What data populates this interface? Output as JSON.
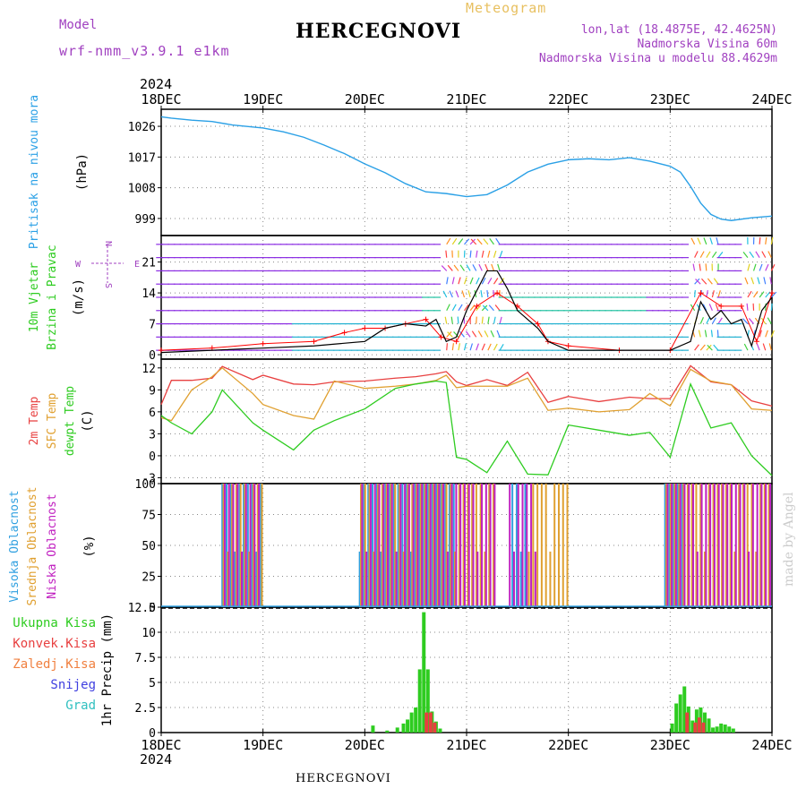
{
  "header": {
    "title": "HERCEGNOVI",
    "meteogram_label": "Meteogram",
    "model_label": "Model",
    "model_name": "wrf-nmm_v3.9.1 e1km",
    "lonlat": "lon,lat (18.4875E, 42.4625N)",
    "elevation": "Nadmorska Visina 60m",
    "model_elevation": "Nadmorska Visina u modelu 88.4629m"
  },
  "footer": {
    "station": "HERCEGNOVI",
    "watermark": "made by Angel"
  },
  "chart_data": [
    {
      "type": "line",
      "panel": "pressure",
      "xlabels": [
        "18DEC",
        "19DEC",
        "20DEC",
        "21DEC",
        "22DEC",
        "23DEC",
        "24DEC"
      ],
      "year": "2024",
      "ylabels": [
        "Pritisak na nivou mora",
        "(hPa)"
      ],
      "yticks": [
        "999",
        "1008",
        "1017",
        "1026"
      ],
      "ylim": [
        994,
        1031
      ],
      "color": "#2aa0e6",
      "series": [
        {
          "x": [
            0,
            0.1,
            0.3,
            0.5,
            0.7,
            1.0,
            1.2,
            1.4,
            1.6,
            1.8,
            2.0,
            2.2,
            2.4,
            2.6,
            2.8,
            3.0,
            3.2,
            3.4,
            3.6,
            3.8,
            4.0,
            4.2,
            4.4,
            4.6,
            4.8,
            5.0,
            5.1,
            5.2,
            5.3,
            5.4,
            5.5,
            5.6,
            5.8,
            6.0
          ],
          "values": [
            1028.8,
            1028.4,
            1027.8,
            1027.4,
            1026.4,
            1025.5,
            1024.4,
            1022.8,
            1020.5,
            1018.0,
            1015.0,
            1012.4,
            1009.2,
            1006.8,
            1006.3,
            1005.4,
            1006.0,
            1008.8,
            1012.6,
            1014.9,
            1016.2,
            1016.5,
            1016.2,
            1016.8,
            1015.8,
            1014.3,
            1012.6,
            1008.4,
            1003.5,
            1000.2,
            998.8,
            998.4,
            999.2,
            999.7
          ]
        }
      ]
    },
    {
      "type": "line",
      "panel": "wind",
      "xlabels": [
        "18DEC",
        "19DEC",
        "20DEC",
        "21DEC",
        "22DEC",
        "23DEC",
        "24DEC"
      ],
      "ylabels": [
        "10m Vjetar",
        "Brzina i Pravac",
        "(m/s)"
      ],
      "yticks": [
        "0",
        "7",
        "14",
        "21"
      ],
      "ylim": [
        -1,
        27
      ],
      "compass": {
        "north": "N",
        "east": "E",
        "west": "W",
        "south": "S"
      },
      "series": [
        {
          "name": "speed",
          "color": "#000000",
          "x": [
            0,
            0.5,
            1.0,
            1.5,
            2.0,
            2.2,
            2.4,
            2.6,
            2.7,
            2.8,
            2.9,
            3.0,
            3.2,
            3.3,
            3.4,
            3.5,
            3.6,
            3.7,
            3.8,
            4.0,
            4.5,
            5.0,
            5.2,
            5.3,
            5.4,
            5.5,
            5.6,
            5.7,
            5.8,
            5.9,
            6.0
          ],
          "values": [
            0.5,
            1,
            1.5,
            2,
            3,
            6,
            7,
            6.5,
            8,
            3,
            4,
            10,
            19,
            19,
            15,
            10,
            8,
            6,
            3,
            1,
            1,
            1,
            3,
            12,
            8,
            10,
            7,
            8,
            2,
            10,
            13
          ]
        },
        {
          "name": "gust",
          "color": "#ff0000",
          "x": [
            0,
            0.5,
            1.0,
            1.5,
            1.8,
            2.0,
            2.2,
            2.4,
            2.6,
            2.75,
            2.9,
            3.1,
            3.3,
            3.5,
            3.7,
            3.8,
            4.0,
            4.5,
            5.0,
            5.3,
            5.5,
            5.7,
            5.85,
            6.0
          ],
          "values": [
            1,
            1.5,
            2.5,
            3,
            5,
            6,
            6,
            7,
            8,
            4,
            3,
            11,
            14,
            11,
            7,
            3,
            2,
            1,
            1,
            14,
            11,
            11,
            3,
            14
          ]
        }
      ]
    },
    {
      "type": "line",
      "panel": "temperature",
      "xlabels": [
        "18DEC",
        "19DEC",
        "20DEC",
        "21DEC",
        "22DEC",
        "23DEC",
        "24DEC"
      ],
      "ylabels": [
        "2m Temp",
        "SFC Temp",
        "dewpt Temp",
        "(C)"
      ],
      "yticks": [
        "-3",
        "0",
        "3",
        "6",
        "9",
        "12"
      ],
      "ylim": [
        -3.8,
        13.2
      ],
      "series": [
        {
          "name": "2m Temp",
          "color": "#e84040",
          "x": [
            0,
            0.1,
            0.3,
            0.5,
            0.6,
            0.9,
            1.0,
            1.3,
            1.5,
            1.7,
            2.0,
            2.3,
            2.5,
            2.7,
            2.8,
            2.9,
            3.0,
            3.2,
            3.4,
            3.6,
            3.8,
            4.0,
            4.3,
            4.6,
            4.8,
            5.0,
            5.2,
            5.4,
            5.6,
            5.8,
            6.0
          ],
          "values": [
            7,
            10.3,
            10.3,
            10.6,
            12.2,
            10.4,
            11,
            9.8,
            9.7,
            10.1,
            10.2,
            10.6,
            10.8,
            11.2,
            11.5,
            10.1,
            9.6,
            10.4,
            9.6,
            11.4,
            7.3,
            8.1,
            7.4,
            8,
            7.8,
            7.8,
            12.3,
            10.1,
            9.7,
            7.5,
            6.8
          ]
        },
        {
          "name": "SFC Temp",
          "color": "#e0a030",
          "x": [
            0,
            0.1,
            0.3,
            0.5,
            0.6,
            0.9,
            1.0,
            1.3,
            1.5,
            1.7,
            2.0,
            2.3,
            2.5,
            2.7,
            2.8,
            2.9,
            3.0,
            3.2,
            3.4,
            3.6,
            3.8,
            4.0,
            4.3,
            4.6,
            4.8,
            5.0,
            5.2,
            5.4,
            5.6,
            5.8,
            6.0
          ],
          "values": [
            5.2,
            4.8,
            9,
            10.8,
            12,
            8.5,
            7,
            5.5,
            5,
            10.2,
            9.2,
            9.5,
            9.8,
            10.3,
            11,
            9.3,
            9.5,
            9.5,
            9.5,
            10.6,
            6.2,
            6.5,
            6,
            6.3,
            8.5,
            6.8,
            11.8,
            10.2,
            9.7,
            6.4,
            6.2
          ]
        },
        {
          "name": "dewpt Temp",
          "color": "#2ecc20",
          "x": [
            0,
            0.1,
            0.3,
            0.5,
            0.6,
            0.9,
            1.0,
            1.3,
            1.5,
            1.7,
            2.0,
            2.3,
            2.5,
            2.7,
            2.8,
            2.9,
            3.0,
            3.2,
            3.4,
            3.6,
            3.8,
            4.0,
            4.3,
            4.6,
            4.8,
            5.0,
            5.2,
            5.4,
            5.6,
            5.8,
            6.0
          ],
          "values": [
            5.5,
            4.5,
            3,
            6,
            9,
            4.5,
            3.5,
            0.8,
            3.5,
            4.8,
            6.4,
            9.2,
            9.8,
            10.2,
            10,
            -0.2,
            -0.5,
            -2.3,
            2,
            -2.5,
            -2.6,
            4.2,
            3.5,
            2.8,
            3.2,
            -0.2,
            9.8,
            3.8,
            4.5,
            0,
            -2.7
          ]
        }
      ]
    },
    {
      "type": "bar",
      "panel": "cloud",
      "xlabels": [
        "18DEC",
        "19DEC",
        "20DEC",
        "21DEC",
        "22DEC",
        "23DEC",
        "24DEC"
      ],
      "ylabels": [
        "Visoka Oblacnost",
        "Srednja Oblacnost",
        "Niska Oblacnost",
        "(%)"
      ],
      "yticks": [
        "0",
        "25",
        "50",
        "75",
        "100"
      ],
      "ylim": [
        0,
        100
      ],
      "series": [
        {
          "name": "Visoka Oblacnost",
          "color": "#30a0e0",
          "segments": [
            [
              0.6,
              1.0
            ],
            [
              1.95,
              2.9
            ],
            [
              3.45,
              3.6
            ],
            [
              4.95,
              5.15
            ]
          ]
        },
        {
          "name": "Srednja Oblacnost",
          "color": "#e0a030",
          "segments": [
            [
              0.6,
              1.0
            ],
            [
              1.95,
              3.3
            ],
            [
              3.6,
              4.0
            ],
            [
              4.95,
              6.0
            ]
          ]
        },
        {
          "name": "Niska Oblacnost",
          "color": "#c020c0",
          "segments": [
            [
              0.6,
              1.0
            ],
            [
              1.95,
              3.3
            ],
            [
              3.4,
              3.7
            ],
            [
              4.95,
              6.0
            ]
          ]
        }
      ]
    },
    {
      "type": "bar",
      "panel": "precip",
      "xlabels": [
        "18DEC",
        "19DEC",
        "20DEC",
        "21DEC",
        "22DEC",
        "23DEC",
        "24DEC"
      ],
      "year": "2024",
      "ylabels": [
        "1hr Precip (mm)"
      ],
      "legend": [
        "Ukupna Kisa",
        "Konvek.Kisa",
        "Zaledj.Kisa",
        "Snijeg",
        "Grad"
      ],
      "legend_colors": [
        "#2ecc20",
        "#e84040",
        "#f08040",
        "#4040e0",
        "#30c0c0"
      ],
      "yticks": [
        "0",
        "2.5",
        "5",
        "7.5",
        "10",
        "12.5"
      ],
      "ylim": [
        0,
        12.5
      ],
      "total": {
        "x": [
          2.08,
          2.22,
          2.32,
          2.38,
          2.42,
          2.46,
          2.5,
          2.54,
          2.58,
          2.62,
          2.66,
          2.7,
          2.74,
          5.02,
          5.06,
          5.1,
          5.14,
          5.18,
          5.22,
          5.26,
          5.3,
          5.34,
          5.38,
          5.42,
          5.46,
          5.5,
          5.54,
          5.58,
          5.62
        ],
        "values": [
          0.7,
          0.2,
          0.5,
          0.9,
          1.3,
          2.0,
          2.5,
          6.3,
          12.0,
          6.3,
          2.1,
          1.1,
          0.4,
          0.9,
          2.9,
          3.8,
          4.6,
          2.6,
          1.2,
          2.3,
          2.5,
          2.0,
          1.4,
          0.5,
          0.6,
          0.9,
          0.8,
          0.6,
          0.4
        ]
      },
      "convective": {
        "x": [
          2.58,
          2.62,
          2.66,
          5.14,
          5.22,
          5.26,
          5.3
        ],
        "values": [
          2.0,
          2.0,
          1.0,
          2.0,
          1.0,
          1.5,
          1.0
        ]
      }
    }
  ]
}
